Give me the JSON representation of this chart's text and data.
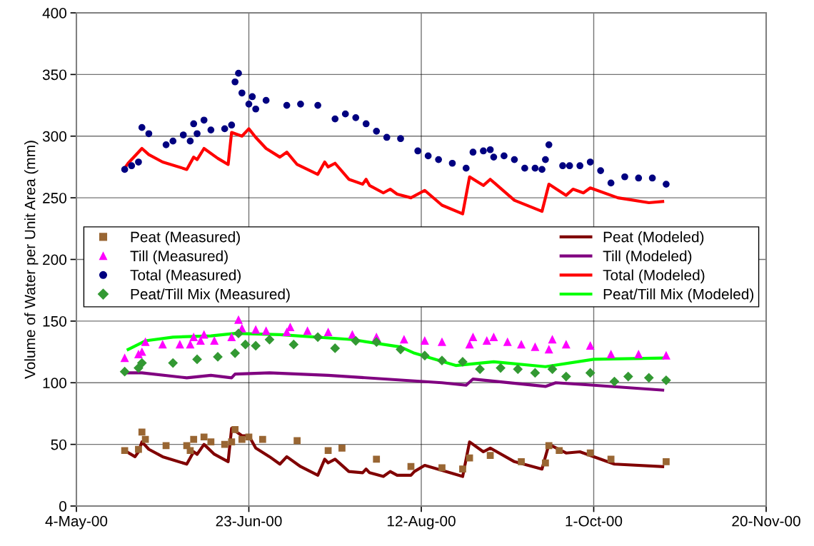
{
  "chart_data": {
    "type": "scatter",
    "ylabel": "Volume of Water per Unit Area (mm)",
    "xlim": [
      "2000-05-04",
      "2000-11-20"
    ],
    "xticks": [
      {
        "value": "2000-05-04",
        "label": "4-May-00"
      },
      {
        "value": "2000-06-23",
        "label": "23-Jun-00"
      },
      {
        "value": "2000-08-12",
        "label": "12-Aug-00"
      },
      {
        "value": "2000-10-01",
        "label": "1-Oct-00"
      },
      {
        "value": "2000-11-20",
        "label": "20-Nov-00"
      }
    ],
    "ylim": [
      0,
      400
    ],
    "yticks": [
      0,
      50,
      100,
      150,
      200,
      250,
      300,
      350,
      400
    ],
    "grid": true,
    "legend": "center",
    "series": [
      {
        "name": "Peat (Measured)",
        "marker": "square",
        "color": "#996633",
        "x": [
          "2000-05-18",
          "2000-05-22",
          "2000-05-23",
          "2000-05-24",
          "2000-05-30",
          "2000-06-05",
          "2000-06-06",
          "2000-06-07",
          "2000-06-10",
          "2000-06-12",
          "2000-06-16",
          "2000-06-18",
          "2000-06-19",
          "2000-06-21",
          "2000-06-23",
          "2000-06-27",
          "2000-07-07",
          "2000-07-16",
          "2000-07-20",
          "2000-07-30",
          "2000-08-09",
          "2000-08-18",
          "2000-08-24",
          "2000-08-26",
          "2000-09-01",
          "2000-09-10",
          "2000-09-17",
          "2000-09-18",
          "2000-09-21",
          "2000-09-30",
          "2000-10-06",
          "2000-10-22"
        ],
        "values": [
          45,
          46,
          60,
          54,
          49,
          49,
          45,
          54,
          56,
          52,
          50,
          52,
          62,
          54,
          56,
          54,
          53,
          45,
          47,
          38,
          32,
          31,
          30,
          39,
          41,
          36,
          35,
          49,
          45,
          43,
          38,
          36
        ]
      },
      {
        "name": "Till (Measured)",
        "marker": "triangle",
        "color": "#ff00ff",
        "x": [
          "2000-05-18",
          "2000-05-22",
          "2000-05-23",
          "2000-05-24",
          "2000-05-29",
          "2000-06-03",
          "2000-06-06",
          "2000-06-07",
          "2000-06-09",
          "2000-06-10",
          "2000-06-13",
          "2000-06-18",
          "2000-06-20",
          "2000-06-21",
          "2000-06-25",
          "2000-06-28",
          "2000-07-04",
          "2000-07-05",
          "2000-07-10",
          "2000-07-16",
          "2000-07-23",
          "2000-07-30",
          "2000-08-07",
          "2000-08-13",
          "2000-08-18",
          "2000-08-26",
          "2000-08-27",
          "2000-08-31",
          "2000-09-02",
          "2000-09-06",
          "2000-09-10",
          "2000-09-14",
          "2000-09-18",
          "2000-09-19",
          "2000-09-23",
          "2000-09-30",
          "2000-10-06",
          "2000-10-14",
          "2000-10-22"
        ],
        "values": [
          120,
          123,
          125,
          133,
          131,
          131,
          131,
          137,
          134,
          139,
          134,
          137,
          151,
          144,
          143,
          142,
          141,
          145,
          142,
          141,
          139,
          137,
          135,
          134,
          133,
          131,
          137,
          134,
          137,
          133,
          131,
          129,
          127,
          135,
          131,
          130,
          123,
          123,
          122
        ]
      },
      {
        "name": "Total (Measured)",
        "marker": "circle",
        "color": "#000080",
        "x": [
          "2000-05-18",
          "2000-05-20",
          "2000-05-22",
          "2000-05-23",
          "2000-05-25",
          "2000-05-30",
          "2000-06-01",
          "2000-06-04",
          "2000-06-06",
          "2000-06-07",
          "2000-06-08",
          "2000-06-10",
          "2000-06-12",
          "2000-06-16",
          "2000-06-18",
          "2000-06-19",
          "2000-06-20",
          "2000-06-21",
          "2000-06-23",
          "2000-06-24",
          "2000-06-25",
          "2000-06-28",
          "2000-07-04",
          "2000-07-08",
          "2000-07-13",
          "2000-07-18",
          "2000-07-21",
          "2000-07-24",
          "2000-07-27",
          "2000-07-30",
          "2000-08-02",
          "2000-08-06",
          "2000-08-11",
          "2000-08-14",
          "2000-08-17",
          "2000-08-21",
          "2000-08-25",
          "2000-08-27",
          "2000-08-30",
          "2000-09-01",
          "2000-09-02",
          "2000-09-05",
          "2000-09-08",
          "2000-09-11",
          "2000-09-14",
          "2000-09-16",
          "2000-09-17",
          "2000-09-18",
          "2000-09-22",
          "2000-09-24",
          "2000-09-27",
          "2000-09-30",
          "2000-10-03",
          "2000-10-06",
          "2000-10-10",
          "2000-10-14",
          "2000-10-18",
          "2000-10-22"
        ],
        "values": [
          273,
          276,
          279,
          307,
          302,
          293,
          296,
          301,
          296,
          310,
          302,
          313,
          305,
          306,
          309,
          344,
          351,
          335,
          326,
          332,
          322,
          329,
          325,
          326,
          325,
          314,
          318,
          315,
          310,
          304,
          299,
          298,
          288,
          284,
          281,
          278,
          274,
          287,
          288,
          289,
          283,
          284,
          281,
          274,
          274,
          273,
          281,
          293,
          276,
          276,
          276,
          279,
          272,
          262,
          267,
          266,
          266,
          261
        ]
      },
      {
        "name": "Peat/Till Mix (Measured)",
        "marker": "diamond",
        "color": "#339933",
        "x": [
          "2000-05-18",
          "2000-05-22",
          "2000-05-23",
          "2000-06-01",
          "2000-06-08",
          "2000-06-14",
          "2000-06-19",
          "2000-06-20",
          "2000-06-22",
          "2000-06-25",
          "2000-06-29",
          "2000-07-06",
          "2000-07-13",
          "2000-07-18",
          "2000-07-24",
          "2000-07-30",
          "2000-08-06",
          "2000-08-13",
          "2000-08-18",
          "2000-08-24",
          "2000-08-29",
          "2000-09-04",
          "2000-09-09",
          "2000-09-14",
          "2000-09-19",
          "2000-09-23",
          "2000-09-30",
          "2000-10-07",
          "2000-10-11",
          "2000-10-17",
          "2000-10-22"
        ],
        "values": [
          109,
          112,
          116,
          116,
          119,
          121,
          124,
          140,
          131,
          130,
          135,
          131,
          137,
          128,
          134,
          133,
          127,
          122,
          118,
          117,
          111,
          112,
          111,
          108,
          111,
          105,
          108,
          101,
          105,
          104,
          102
        ]
      },
      {
        "name": "Peat (Modeled)",
        "type": "line",
        "color": "#800000",
        "x": [
          "2000-05-18",
          "2000-05-21",
          "2000-05-22",
          "2000-05-23",
          "2000-05-25",
          "2000-05-29",
          "2000-06-05",
          "2000-06-07",
          "2000-06-08",
          "2000-06-10",
          "2000-06-13",
          "2000-06-17",
          "2000-06-18",
          "2000-06-21",
          "2000-06-23",
          "2000-06-25",
          "2000-06-29",
          "2000-07-02",
          "2000-07-04",
          "2000-07-08",
          "2000-07-13",
          "2000-07-15",
          "2000-07-16",
          "2000-07-18",
          "2000-07-22",
          "2000-07-26",
          "2000-07-27",
          "2000-07-28",
          "2000-08-01",
          "2000-08-03",
          "2000-08-05",
          "2000-08-09",
          "2000-08-10",
          "2000-08-13",
          "2000-08-18",
          "2000-08-24",
          "2000-08-26",
          "2000-08-30",
          "2000-09-01",
          "2000-09-08",
          "2000-09-16",
          "2000-09-18",
          "2000-09-23",
          "2000-09-27",
          "2000-10-07",
          "2000-10-21"
        ],
        "values": [
          45,
          40,
          44,
          52,
          46,
          40,
          34,
          44,
          42,
          50,
          42,
          36,
          63,
          57,
          57,
          47,
          40,
          34,
          40,
          32,
          25,
          38,
          35,
          38,
          28,
          27,
          30,
          27,
          24,
          28,
          25,
          25,
          28,
          33,
          29,
          24,
          52,
          44,
          47,
          36,
          30,
          50,
          43,
          44,
          34,
          32
        ]
      },
      {
        "name": "Till (Modeled)",
        "type": "line",
        "color": "#800080",
        "x": [
          "2000-05-19",
          "2000-05-23",
          "2000-06-05",
          "2000-06-12",
          "2000-06-18",
          "2000-06-19",
          "2000-06-29",
          "2000-07-16",
          "2000-08-18",
          "2000-08-25",
          "2000-08-27",
          "2000-09-17",
          "2000-09-20",
          "2000-10-01",
          "2000-10-21"
        ],
        "values": [
          108,
          108,
          104,
          106,
          104,
          107,
          108,
          106,
          100,
          98,
          103,
          97,
          100,
          98,
          94
        ]
      },
      {
        "name": "Total (Modeled)",
        "type": "line",
        "color": "#ff0000",
        "x": [
          "2000-05-18",
          "2000-05-19",
          "2000-05-23",
          "2000-05-25",
          "2000-05-29",
          "2000-06-05",
          "2000-06-07",
          "2000-06-08",
          "2000-06-10",
          "2000-06-14",
          "2000-06-17",
          "2000-06-18",
          "2000-06-21",
          "2000-06-23",
          "2000-06-25",
          "2000-06-28",
          "2000-07-02",
          "2000-07-04",
          "2000-07-07",
          "2000-07-13",
          "2000-07-15",
          "2000-07-16",
          "2000-07-18",
          "2000-07-22",
          "2000-07-26",
          "2000-07-27",
          "2000-07-28",
          "2000-08-01",
          "2000-08-03",
          "2000-08-05",
          "2000-08-09",
          "2000-08-13",
          "2000-08-18",
          "2000-08-24",
          "2000-08-26",
          "2000-08-30",
          "2000-09-01",
          "2000-09-08",
          "2000-09-16",
          "2000-09-18",
          "2000-09-23",
          "2000-09-25",
          "2000-09-28",
          "2000-09-30",
          "2000-10-08",
          "2000-10-17",
          "2000-10-21"
        ],
        "values": [
          274,
          278,
          290,
          285,
          279,
          273,
          283,
          281,
          290,
          282,
          277,
          303,
          300,
          306,
          299,
          290,
          283,
          287,
          277,
          269,
          279,
          275,
          278,
          265,
          261,
          265,
          260,
          254,
          257,
          253,
          250,
          256,
          244,
          237,
          267,
          260,
          265,
          248,
          239,
          261,
          252,
          257,
          254,
          258,
          250,
          246,
          247
        ]
      },
      {
        "name": "Peat/Till Mix (Modeled)",
        "type": "line",
        "color": "#00ff00",
        "x": [
          "2000-05-19",
          "2000-05-24",
          "2000-06-01",
          "2000-06-12",
          "2000-06-19",
          "2000-07-02",
          "2000-07-23",
          "2000-08-06",
          "2000-08-10",
          "2000-08-22",
          "2000-09-02",
          "2000-09-17",
          "2000-10-01",
          "2000-10-21"
        ],
        "values": [
          127,
          134,
          137,
          138,
          140,
          139,
          135,
          129,
          124,
          114,
          117,
          113,
          119,
          120
        ]
      }
    ]
  }
}
